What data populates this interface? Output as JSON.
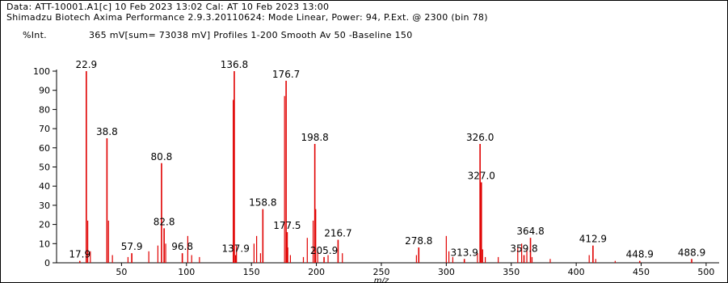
{
  "header": {
    "line1": "Data: ATT-10001.A1[c] 10 Feb 2023 13:02 Cal: AT 10 Feb 2023 13:00",
    "line2": "Shimadzu Biotech Axima Performance 2.9.3.20110624: Mode Linear, Power: 94, P.Ext. @ 2300 (bin 78)",
    "ylabel": "%Int.",
    "summary": "365 mV[sum= 73038 mV]  Profiles 1-200 Smooth Av 50 -Baseline 150"
  },
  "colors": {
    "peak": "#e00000",
    "text": "#000000",
    "axis": "#000000"
  },
  "chart_data": {
    "type": "line",
    "title": "",
    "xlabel": "m/z",
    "ylabel": "%Int.",
    "xlim": [
      0,
      510
    ],
    "ylim": [
      0,
      100
    ],
    "x_ticks": [
      50,
      100,
      150,
      200,
      250,
      300,
      350,
      400,
      450,
      500
    ],
    "y_ticks": [
      0,
      10,
      20,
      30,
      40,
      50,
      60,
      70,
      80,
      90,
      100
    ],
    "grid": false,
    "legend": "none",
    "peaks": [
      {
        "mz": 17.9,
        "intensity": 1,
        "label": "17.9"
      },
      {
        "mz": 22.9,
        "intensity": 100,
        "label": "22.9"
      },
      {
        "mz": 38.8,
        "intensity": 65,
        "label": "38.8"
      },
      {
        "mz": 57.9,
        "intensity": 5,
        "label": "57.9"
      },
      {
        "mz": 80.8,
        "intensity": 52,
        "label": "80.8"
      },
      {
        "mz": 82.8,
        "intensity": 18,
        "label": "82.8"
      },
      {
        "mz": 96.8,
        "intensity": 5,
        "label": "96.8"
      },
      {
        "mz": 136.8,
        "intensity": 100,
        "label": "136.8"
      },
      {
        "mz": 137.9,
        "intensity": 4,
        "label": "137.9"
      },
      {
        "mz": 158.8,
        "intensity": 28,
        "label": "158.8"
      },
      {
        "mz": 176.7,
        "intensity": 95,
        "label": "176.7"
      },
      {
        "mz": 177.5,
        "intensity": 16,
        "label": "177.5"
      },
      {
        "mz": 198.8,
        "intensity": 62,
        "label": "198.8"
      },
      {
        "mz": 205.9,
        "intensity": 3,
        "label": "205.9"
      },
      {
        "mz": 216.7,
        "intensity": 12,
        "label": "216.7"
      },
      {
        "mz": 278.8,
        "intensity": 8,
        "label": "278.8"
      },
      {
        "mz": 313.9,
        "intensity": 2,
        "label": "313.9"
      },
      {
        "mz": 326.0,
        "intensity": 62,
        "label": "326.0"
      },
      {
        "mz": 327.0,
        "intensity": 42,
        "label": "327.0"
      },
      {
        "mz": 359.8,
        "intensity": 4,
        "label": "359.8"
      },
      {
        "mz": 364.8,
        "intensity": 13,
        "label": "364.8"
      },
      {
        "mz": 412.9,
        "intensity": 9,
        "label": "412.9"
      },
      {
        "mz": 448.9,
        "intensity": 1,
        "label": "448.9"
      },
      {
        "mz": 488.9,
        "intensity": 2,
        "label": "488.9"
      }
    ],
    "minor_peaks": [
      {
        "mz": 24,
        "intensity": 22
      },
      {
        "mz": 26,
        "intensity": 6
      },
      {
        "mz": 40,
        "intensity": 22
      },
      {
        "mz": 43,
        "intensity": 4
      },
      {
        "mz": 55,
        "intensity": 3
      },
      {
        "mz": 71,
        "intensity": 6
      },
      {
        "mz": 78,
        "intensity": 9
      },
      {
        "mz": 84,
        "intensity": 10
      },
      {
        "mz": 101,
        "intensity": 14
      },
      {
        "mz": 104,
        "intensity": 4
      },
      {
        "mz": 110,
        "intensity": 3
      },
      {
        "mz": 136,
        "intensity": 85
      },
      {
        "mz": 138.5,
        "intensity": 9
      },
      {
        "mz": 152,
        "intensity": 10
      },
      {
        "mz": 154,
        "intensity": 14
      },
      {
        "mz": 157,
        "intensity": 5
      },
      {
        "mz": 175.5,
        "intensity": 87
      },
      {
        "mz": 178,
        "intensity": 8
      },
      {
        "mz": 180,
        "intensity": 4
      },
      {
        "mz": 190,
        "intensity": 3
      },
      {
        "mz": 193,
        "intensity": 13
      },
      {
        "mz": 197.5,
        "intensity": 22
      },
      {
        "mz": 199.5,
        "intensity": 28
      },
      {
        "mz": 201,
        "intensity": 6
      },
      {
        "mz": 209,
        "intensity": 4
      },
      {
        "mz": 220,
        "intensity": 5
      },
      {
        "mz": 277,
        "intensity": 4
      },
      {
        "mz": 300,
        "intensity": 14
      },
      {
        "mz": 302,
        "intensity": 6
      },
      {
        "mz": 305,
        "intensity": 3
      },
      {
        "mz": 324,
        "intensity": 5
      },
      {
        "mz": 328,
        "intensity": 7
      },
      {
        "mz": 330,
        "intensity": 3
      },
      {
        "mz": 340,
        "intensity": 3
      },
      {
        "mz": 355,
        "intensity": 8
      },
      {
        "mz": 358,
        "intensity": 10
      },
      {
        "mz": 362,
        "intensity": 7
      },
      {
        "mz": 366,
        "intensity": 3
      },
      {
        "mz": 380,
        "intensity": 2
      },
      {
        "mz": 410,
        "intensity": 4
      },
      {
        "mz": 415,
        "intensity": 2
      },
      {
        "mz": 430,
        "intensity": 1
      }
    ]
  }
}
